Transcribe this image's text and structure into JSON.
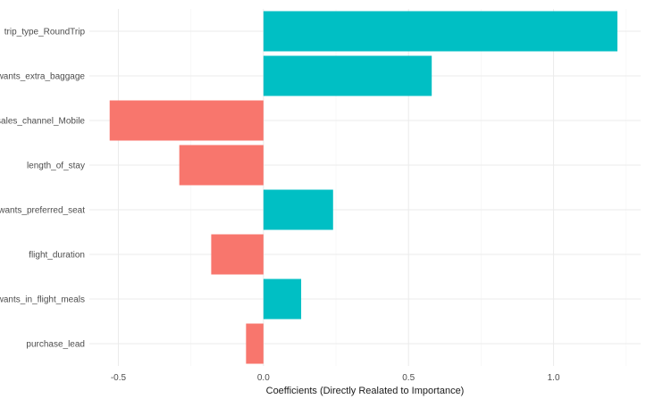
{
  "chart_data": {
    "type": "bar",
    "orientation": "horizontal",
    "categories": [
      "trip_type_RoundTrip",
      "wants_extra_baggage",
      "sales_channel_Mobile",
      "length_of_stay",
      "wants_preferred_seat",
      "flight_duration",
      "wants_in_flight_meals",
      "purchase_lead"
    ],
    "values": [
      1.22,
      0.58,
      -0.53,
      -0.29,
      0.24,
      -0.18,
      0.13,
      -0.06
    ],
    "xlabel": "Coefficients (Directly Realated to Importance)",
    "ylabel": "",
    "xlim": [
      -0.6,
      1.3
    ],
    "xticks": [
      -0.5,
      0.0,
      0.5,
      1.0
    ],
    "xtick_labels": [
      "-0.5",
      "0.0",
      "0.5",
      "1.0"
    ],
    "grid": true,
    "legend": "none",
    "colors": {
      "positive": "#00BFC4",
      "negative": "#F8766D"
    }
  }
}
